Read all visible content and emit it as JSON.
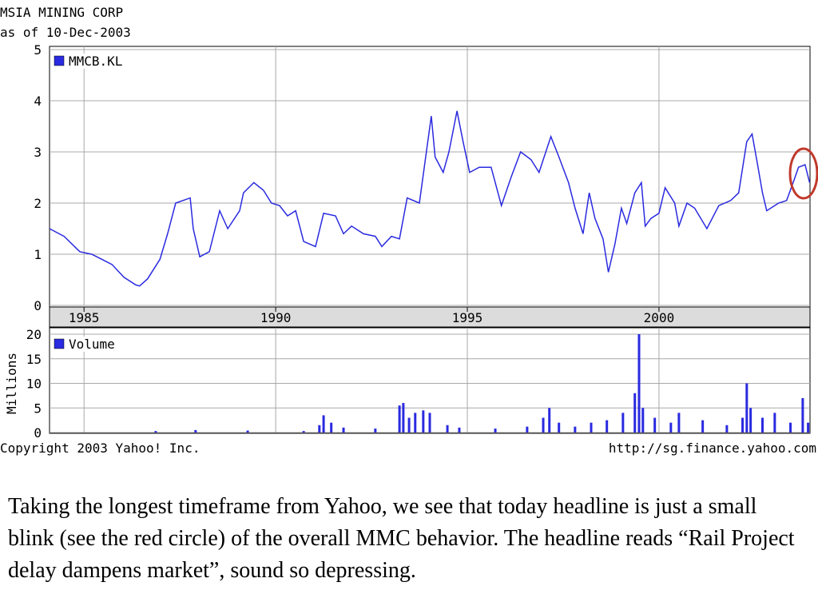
{
  "chart_data": [
    {
      "type": "line",
      "title": "MSIA MINING CORP",
      "subtitle": "as of 10-Dec-2003",
      "x": [
        1984.1,
        1984.48,
        1984.89,
        1985.2,
        1985.73,
        1986.04,
        1986.35,
        1986.45,
        1986.66,
        1986.98,
        1987.18,
        1987.39,
        1987.77,
        1987.85,
        1988.02,
        1988.27,
        1988.54,
        1988.75,
        1989.06,
        1989.16,
        1989.43,
        1989.68,
        1989.89,
        1990.1,
        1990.31,
        1990.52,
        1990.73,
        1991.04,
        1991.25,
        1991.56,
        1991.77,
        1991.98,
        1992.29,
        1992.6,
        1992.77,
        1993.02,
        1993.23,
        1993.43,
        1993.75,
        1994.06,
        1994.16,
        1994.37,
        1994.52,
        1994.73,
        1994.89,
        1995.06,
        1995.31,
        1995.62,
        1995.89,
        1996.14,
        1996.39,
        1996.66,
        1996.87,
        1997.18,
        1997.39,
        1997.64,
        1997.81,
        1998.02,
        1998.18,
        1998.33,
        1998.54,
        1998.68,
        1998.85,
        1999.02,
        1999.16,
        1999.37,
        1999.54,
        1999.64,
        1999.79,
        2000.0,
        2000.16,
        2000.41,
        2000.52,
        2000.73,
        2000.93,
        2001.25,
        2001.56,
        2001.87,
        2002.08,
        2002.29,
        2002.43,
        2002.56,
        2002.7,
        2002.81,
        2003.12,
        2003.33,
        2003.5,
        2003.64,
        2003.81,
        2003.93
      ],
      "series": [
        {
          "name": "MMCB.KL",
          "color": "#2a2ae0",
          "values": [
            1.5,
            1.35,
            1.05,
            1.0,
            0.8,
            0.55,
            0.4,
            0.38,
            0.52,
            0.9,
            1.4,
            2.0,
            2.1,
            1.5,
            0.95,
            1.05,
            1.85,
            1.5,
            1.85,
            2.2,
            2.4,
            2.25,
            2.0,
            1.95,
            1.75,
            1.85,
            1.25,
            1.15,
            1.8,
            1.75,
            1.4,
            1.55,
            1.4,
            1.35,
            1.15,
            1.35,
            1.3,
            2.1,
            2.0,
            3.7,
            2.9,
            2.6,
            3.0,
            3.8,
            3.2,
            2.6,
            2.7,
            2.7,
            1.95,
            2.5,
            3.0,
            2.85,
            2.6,
            3.3,
            2.9,
            2.4,
            1.9,
            1.4,
            2.2,
            1.7,
            1.3,
            0.65,
            1.2,
            1.9,
            1.6,
            2.2,
            2.4,
            1.55,
            1.7,
            1.8,
            2.3,
            2.0,
            1.55,
            2.0,
            1.9,
            1.5,
            1.95,
            2.05,
            2.2,
            3.2,
            3.35,
            2.8,
            2.2,
            1.85,
            2.0,
            2.05,
            2.4,
            2.7,
            2.75,
            2.4
          ]
        }
      ],
      "xlim": [
        1984.1,
        2003.94
      ],
      "xticks": [
        1985,
        1990,
        1995,
        2000
      ],
      "ylim": [
        0,
        5
      ],
      "yticks": [
        0,
        1,
        2,
        3,
        4,
        5
      ],
      "grid": true,
      "legend": "upper left"
    },
    {
      "type": "bar",
      "ylabel": "Millions",
      "x": [
        1986.87,
        1987.91,
        1989.27,
        1990.73,
        1991.14,
        1991.25,
        1991.45,
        1991.77,
        1992.6,
        1993.23,
        1993.33,
        1993.48,
        1993.64,
        1993.85,
        1994.02,
        1994.48,
        1994.79,
        1995.73,
        1996.56,
        1996.98,
        1997.14,
        1997.39,
        1997.81,
        1998.23,
        1998.64,
        1999.06,
        1999.37,
        1999.48,
        1999.58,
        1999.89,
        2000.31,
        2000.52,
        2001.14,
        2001.77,
        2002.18,
        2002.29,
        2002.39,
        2002.7,
        2003.02,
        2003.43,
        2003.75,
        2003.89
      ],
      "series": [
        {
          "name": "Volume",
          "color": "#2a2ae0",
          "values": [
            0.3,
            0.5,
            0.4,
            0.3,
            1.5,
            3.5,
            2,
            1,
            0.8,
            5.5,
            6,
            3,
            4,
            4.5,
            4,
            1.5,
            1,
            0.8,
            1.2,
            3,
            5,
            2,
            1.2,
            2,
            2.5,
            4,
            8,
            20,
            5,
            3,
            2,
            4,
            2.5,
            1.5,
            3,
            10,
            5,
            3,
            4,
            2,
            7,
            2
          ]
        }
      ],
      "xlim": [
        1984.1,
        2003.94
      ],
      "ylim": [
        0,
        20
      ],
      "yticks": [
        0,
        5,
        10,
        15,
        20
      ],
      "grid": true,
      "legend": "upper left"
    }
  ],
  "footer": {
    "left": "Copyright 2003 Yahoo! Inc.",
    "right": "http://sg.finance.yahoo.com"
  },
  "caption": "Taking the longest timeframe from Yahoo, we see that today headline is just a small blink (see the red circle) of the overall MMC behavior. The headline reads “Rail Project delay dampens market”, sound so depressing."
}
